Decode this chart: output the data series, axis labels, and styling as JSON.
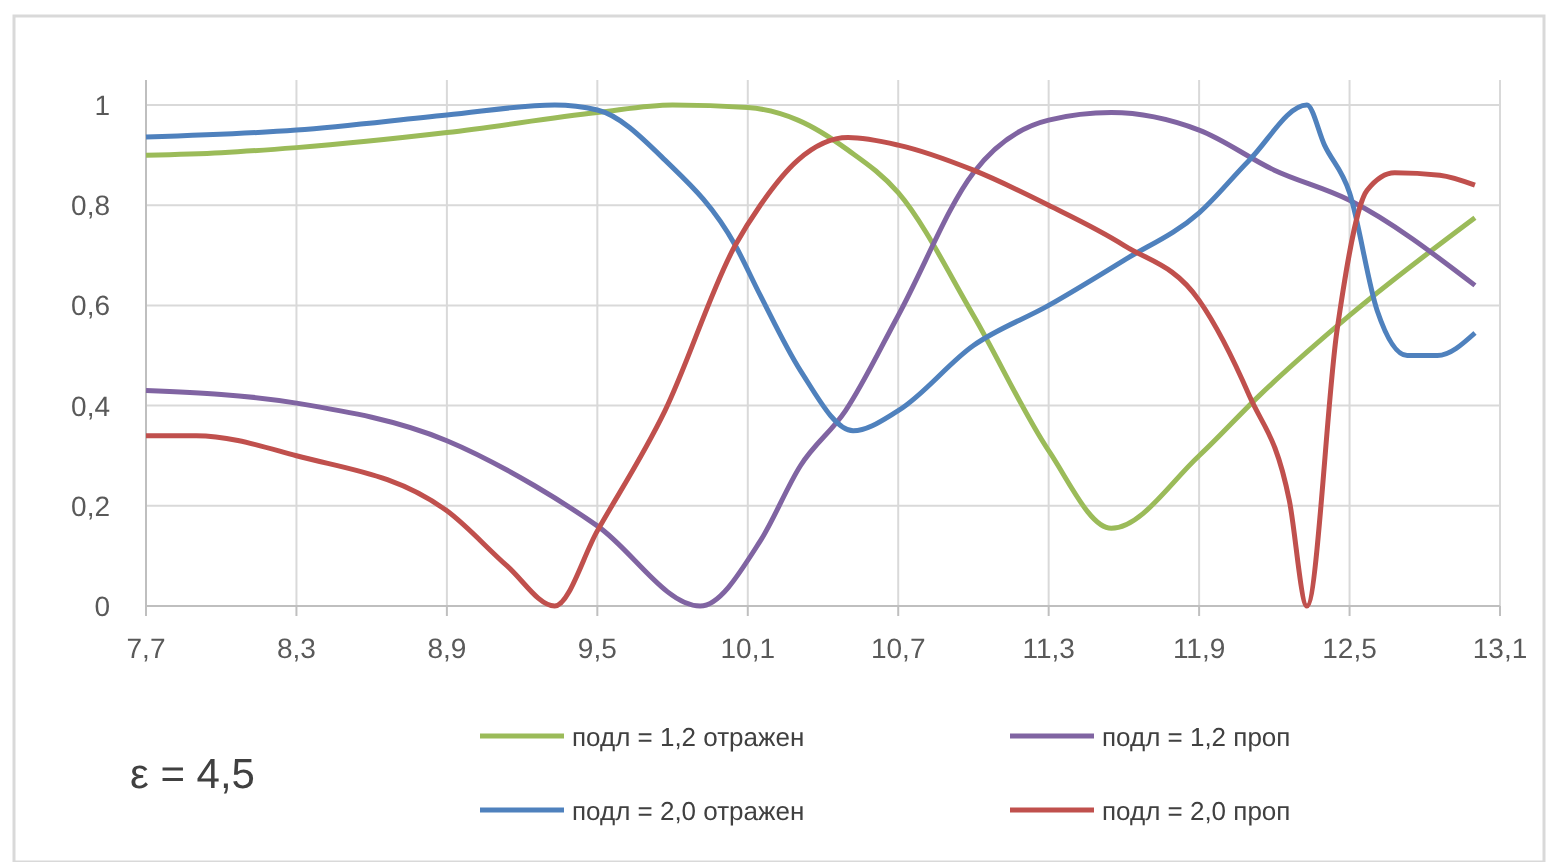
{
  "chart_data": {
    "type": "line",
    "xlim": [
      7.7,
      13.1
    ],
    "ylim": [
      0,
      1.05
    ],
    "xticks": [
      {
        "value": 7.7,
        "label": "7,7"
      },
      {
        "value": 8.3,
        "label": "8,3"
      },
      {
        "value": 8.9,
        "label": "8,9"
      },
      {
        "value": 9.5,
        "label": "9,5"
      },
      {
        "value": 10.1,
        "label": "10,1"
      },
      {
        "value": 10.7,
        "label": "10,7"
      },
      {
        "value": 11.3,
        "label": "11,3"
      },
      {
        "value": 11.9,
        "label": "11,9"
      },
      {
        "value": 12.5,
        "label": "12,5"
      },
      {
        "value": 13.1,
        "label": "13,1"
      }
    ],
    "yticks": [
      0,
      {
        "value": 0.2,
        "label": "0,2"
      },
      {
        "value": 0.4,
        "label": "0,4"
      },
      {
        "value": 0.6,
        "label": "0,6"
      },
      {
        "value": 0.8,
        "label": "0,8"
      },
      1
    ],
    "grid": true,
    "legend": "bottom",
    "marker": "none",
    "line_style": "solid",
    "annotations": [
      "ε = 4,5"
    ],
    "series": [
      {
        "name": "подл = 1,2 отражен",
        "color": "#9bbb59",
        "x": [
          7.7,
          8.0,
          8.3,
          8.9,
          9.5,
          9.8,
          10.1,
          10.3,
          10.5,
          10.7,
          11.0,
          11.3,
          11.55,
          11.9,
          12.14,
          12.5,
          13.0
        ],
        "values": [
          0.9,
          0.905,
          0.915,
          0.945,
          0.985,
          1.0,
          0.995,
          0.97,
          0.91,
          0.825,
          0.58,
          0.31,
          0.155,
          0.3,
          0.42,
          0.58,
          0.775
        ]
      },
      {
        "name": "подл = 1,2 проп",
        "color": "#8064a2",
        "x": [
          7.7,
          8.3,
          8.9,
          9.25,
          9.5,
          9.91,
          10.15,
          10.31,
          10.49,
          10.7,
          11.0,
          11.3,
          11.55,
          11.9,
          12.2,
          12.5,
          13.0
        ],
        "values": [
          0.43,
          0.405,
          0.33,
          0.24,
          0.16,
          0,
          0.13,
          0.28,
          0.39,
          0.58,
          0.865,
          0.97,
          0.985,
          0.95,
          0.87,
          0.81,
          0.64
        ]
      },
      {
        "name": "подл = 2,0 отражен",
        "color": "#4f81bd",
        "x": [
          7.7,
          8.3,
          8.9,
          9.33,
          9.5,
          9.77,
          10.05,
          10.15,
          10.31,
          10.52,
          10.7,
          11.0,
          11.3,
          11.6,
          11.9,
          12.1,
          12.33,
          12.4,
          12.5,
          12.61,
          12.73,
          12.85,
          13.0
        ],
        "values": [
          0.936,
          0.95,
          0.98,
          1.0,
          0.99,
          0.89,
          0.72,
          0.62,
          0.47,
          0.35,
          0.39,
          0.52,
          0.6,
          0.69,
          0.785,
          0.89,
          1.0,
          0.92,
          0.825,
          0.59,
          0.5,
          0.5,
          0.545
        ]
      },
      {
        "name": "подл = 2,0 проп",
        "color": "#c0504d",
        "x": [
          7.7,
          7.9,
          8.3,
          8.9,
          9.14,
          9.33,
          9.5,
          9.77,
          10.05,
          10.15,
          10.3,
          10.5,
          10.7,
          11.0,
          11.3,
          11.6,
          11.9,
          12.1,
          12.26,
          12.33,
          12.45,
          12.57,
          12.68,
          12.86,
          13.0
        ],
        "values": [
          0.34,
          0.34,
          0.3,
          0.19,
          0.08,
          0,
          0.15,
          0.39,
          0.72,
          0.8,
          0.89,
          0.935,
          0.92,
          0.87,
          0.8,
          0.72,
          0.61,
          0.42,
          0.21,
          0,
          0.55,
          0.83,
          0.865,
          0.86,
          0.84
        ]
      }
    ]
  }
}
